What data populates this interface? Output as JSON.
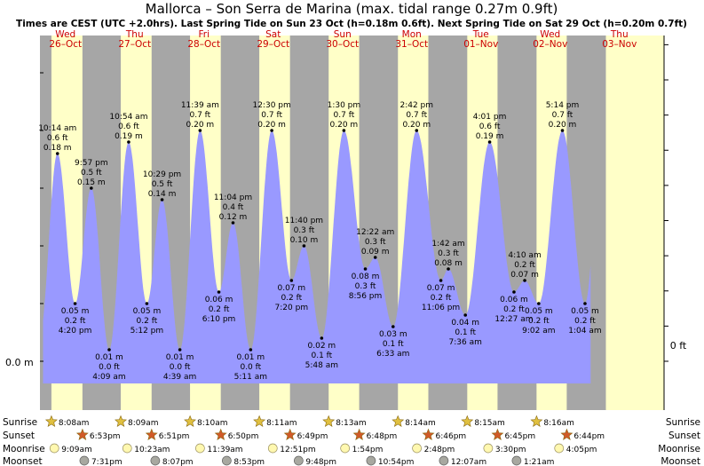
{
  "title": "Mallorca – Son Serra de Marina (max. tidal range 0.27m 0.9ft)",
  "subtitle": "Times are CEST (UTC +2.0hrs). Last Spring Tide on Sun 23 Oct (h=0.18m 0.6ft). Next Spring Tide on Sat 29 Oct (h=0.20m 0.7ft)",
  "colors": {
    "night": "#a6a6a6",
    "day": "#ffffc8",
    "water": "#9999ff",
    "day_label": "#cc0000",
    "sun_icon": "#e0c040",
    "sunset_icon": "#d05a28",
    "moonrise_icon": "#fff8b0",
    "moonset_icon": "#a8a8a0"
  },
  "chart_data": {
    "type": "area",
    "ylabel_left": "0.0 m",
    "ylabel_right": "0 ft",
    "ylim": [
      -0.04,
      0.32
    ],
    "x_unit": "hours from 00:00 Wed 26 Oct",
    "days": [
      {
        "dow": "Wed",
        "date": "26–Oct"
      },
      {
        "dow": "Thu",
        "date": "27–Oct"
      },
      {
        "dow": "Fri",
        "date": "28–Oct"
      },
      {
        "dow": "Sat",
        "date": "29–Oct"
      },
      {
        "dow": "Sun",
        "date": "30–Oct"
      },
      {
        "dow": "Mon",
        "date": "31–Oct"
      },
      {
        "dow": "Tue",
        "date": "01–Nov"
      },
      {
        "dow": "Wed",
        "date": "02–Nov"
      },
      {
        "dow": "Thu",
        "date": "03–Nov"
      }
    ],
    "tides": [
      {
        "time": "10:14 am",
        "t": 10.23,
        "m": "0.18 m",
        "ft": "0.6 ft",
        "v": 0.18,
        "type": "high"
      },
      {
        "time": "4:20 pm",
        "t": 16.33,
        "m": "0.05 m",
        "ft": "0.2 ft",
        "v": 0.05,
        "type": "low"
      },
      {
        "time": "9:57 pm",
        "t": 21.95,
        "m": "0.15 m",
        "ft": "0.5 ft",
        "v": 0.15,
        "type": "high"
      },
      {
        "time": "4:09 am",
        "t": 28.15,
        "m": "0.01 m",
        "ft": "0.0 ft",
        "v": 0.01,
        "type": "low"
      },
      {
        "time": "10:54 am",
        "t": 34.9,
        "m": "0.19 m",
        "ft": "0.6 ft",
        "v": 0.19,
        "type": "high"
      },
      {
        "time": "5:12 pm",
        "t": 41.2,
        "m": "0.05 m",
        "ft": "0.2 ft",
        "v": 0.05,
        "type": "low"
      },
      {
        "time": "10:29 pm",
        "t": 46.48,
        "m": "0.14 m",
        "ft": "0.5 ft",
        "v": 0.14,
        "type": "high"
      },
      {
        "time": "4:39 am",
        "t": 52.65,
        "m": "0.01 m",
        "ft": "0.0 ft",
        "v": 0.01,
        "type": "low"
      },
      {
        "time": "11:39 am",
        "t": 59.65,
        "m": "0.20 m",
        "ft": "0.7 ft",
        "v": 0.2,
        "type": "high"
      },
      {
        "time": "6:10 pm",
        "t": 66.17,
        "m": "0.06 m",
        "ft": "0.2 ft",
        "v": 0.06,
        "type": "low"
      },
      {
        "time": "11:04 pm",
        "t": 71.07,
        "m": "0.12 m",
        "ft": "0.4 ft",
        "v": 0.12,
        "type": "high"
      },
      {
        "time": "5:11 am",
        "t": 77.18,
        "m": "0.01 m",
        "ft": "0.0 ft",
        "v": 0.01,
        "type": "low"
      },
      {
        "time": "12:30 pm",
        "t": 84.5,
        "m": "0.20 m",
        "ft": "0.7 ft",
        "v": 0.2,
        "type": "high"
      },
      {
        "time": "7:20 pm",
        "t": 91.33,
        "m": "0.07 m",
        "ft": "0.2 ft",
        "v": 0.07,
        "type": "low"
      },
      {
        "time": "11:40 pm",
        "t": 95.67,
        "m": "0.10 m",
        "ft": "0.3 ft",
        "v": 0.1,
        "type": "high"
      },
      {
        "time": "5:48 am",
        "t": 101.8,
        "m": "0.02 m",
        "ft": "0.1 ft",
        "v": 0.02,
        "type": "low"
      },
      {
        "time": "1:30 pm",
        "t": 109.5,
        "m": "0.20 m",
        "ft": "0.7 ft",
        "v": 0.2,
        "type": "high"
      },
      {
        "time": "8:56 pm",
        "t": 116.93,
        "m": "0.08 m",
        "ft": "0.3 ft",
        "v": 0.08,
        "type": "low"
      },
      {
        "time": "12:22 am",
        "t": 120.37,
        "m": "0.09 m",
        "ft": "0.3 ft",
        "v": 0.09,
        "type": "high"
      },
      {
        "time": "6:33 am",
        "t": 126.55,
        "m": "0.03 m",
        "ft": "0.1 ft",
        "v": 0.03,
        "type": "low"
      },
      {
        "time": "2:42 pm",
        "t": 134.7,
        "m": "0.20 m",
        "ft": "0.7 ft",
        "v": 0.2,
        "type": "high"
      },
      {
        "time": "11:06 pm",
        "t": 143.1,
        "m": "0.07 m",
        "ft": "0.2 ft",
        "v": 0.07,
        "type": "low"
      },
      {
        "time": "1:42 am",
        "t": 145.7,
        "m": "0.08 m",
        "ft": "0.3 ft",
        "v": 0.08,
        "type": "high"
      },
      {
        "time": "7:36 am",
        "t": 151.6,
        "m": "0.04 m",
        "ft": "0.1 ft",
        "v": 0.04,
        "type": "low"
      },
      {
        "time": "4:01 pm",
        "t": 160.02,
        "m": "0.19 m",
        "ft": "0.6 ft",
        "v": 0.19,
        "type": "high"
      },
      {
        "time": "12:27 am",
        "t": 168.45,
        "m": "0.06 m",
        "ft": "0.2 ft",
        "v": 0.06,
        "type": "low"
      },
      {
        "time": "4:10 am",
        "t": 172.17,
        "m": "0.07 m",
        "ft": "0.2 ft",
        "v": 0.07,
        "type": "high"
      },
      {
        "time": "9:02 am",
        "t": 177.03,
        "m": "0.05 m",
        "ft": "0.2 ft",
        "v": 0.05,
        "type": "low"
      },
      {
        "time": "5:14 pm",
        "t": 185.23,
        "m": "0.20 m",
        "ft": "0.7 ft",
        "v": 0.2,
        "type": "high"
      },
      {
        "time": "1:04 am",
        "t": 193.07,
        "m": "0.05 m",
        "ft": "0.2 ft",
        "v": 0.05,
        "type": "low"
      }
    ],
    "sun_moon": {
      "row_labels": [
        "Sunrise",
        "Sunset",
        "Moonrise",
        "Moonset"
      ],
      "sunrise": [
        {
          "label": "8:08am",
          "t": 8.13
        },
        {
          "label": "8:09am",
          "t": 32.15
        },
        {
          "label": "8:10am",
          "t": 56.17
        },
        {
          "label": "8:11am",
          "t": 80.18
        },
        {
          "label": "8:13am",
          "t": 104.22
        },
        {
          "label": "8:14am",
          "t": 128.23
        },
        {
          "label": "8:15am",
          "t": 152.25
        },
        {
          "label": "8:16am",
          "t": 176.27
        }
      ],
      "sunset": [
        {
          "label": "6:53pm",
          "t": 18.88
        },
        {
          "label": "6:51pm",
          "t": 42.85
        },
        {
          "label": "6:50pm",
          "t": 66.83
        },
        {
          "label": "6:49pm",
          "t": 90.82
        },
        {
          "label": "6:48pm",
          "t": 114.8
        },
        {
          "label": "6:46pm",
          "t": 138.77
        },
        {
          "label": "6:45pm",
          "t": 162.75
        },
        {
          "label": "6:44pm",
          "t": 186.73
        }
      ],
      "moonrise": [
        {
          "label": "9:09am",
          "t": 9.15
        },
        {
          "label": "10:23am",
          "t": 34.38
        },
        {
          "label": "11:39am",
          "t": 59.65
        },
        {
          "label": "12:51pm",
          "t": 84.85
        },
        {
          "label": "1:54pm",
          "t": 109.9
        },
        {
          "label": "2:48pm",
          "t": 134.8
        },
        {
          "label": "3:30pm",
          "t": 159.5
        },
        {
          "label": "4:05pm",
          "t": 184.08
        }
      ],
      "moonset": [
        {
          "label": "7:31pm",
          "t": 19.52
        },
        {
          "label": "8:07pm",
          "t": 44.12
        },
        {
          "label": "8:53pm",
          "t": 68.88
        },
        {
          "label": "9:48pm",
          "t": 93.8
        },
        {
          "label": "10:54pm",
          "t": 118.9
        },
        {
          "label": "12:07am",
          "t": 144.12
        },
        {
          "label": "1:21am",
          "t": 169.35
        }
      ]
    }
  }
}
